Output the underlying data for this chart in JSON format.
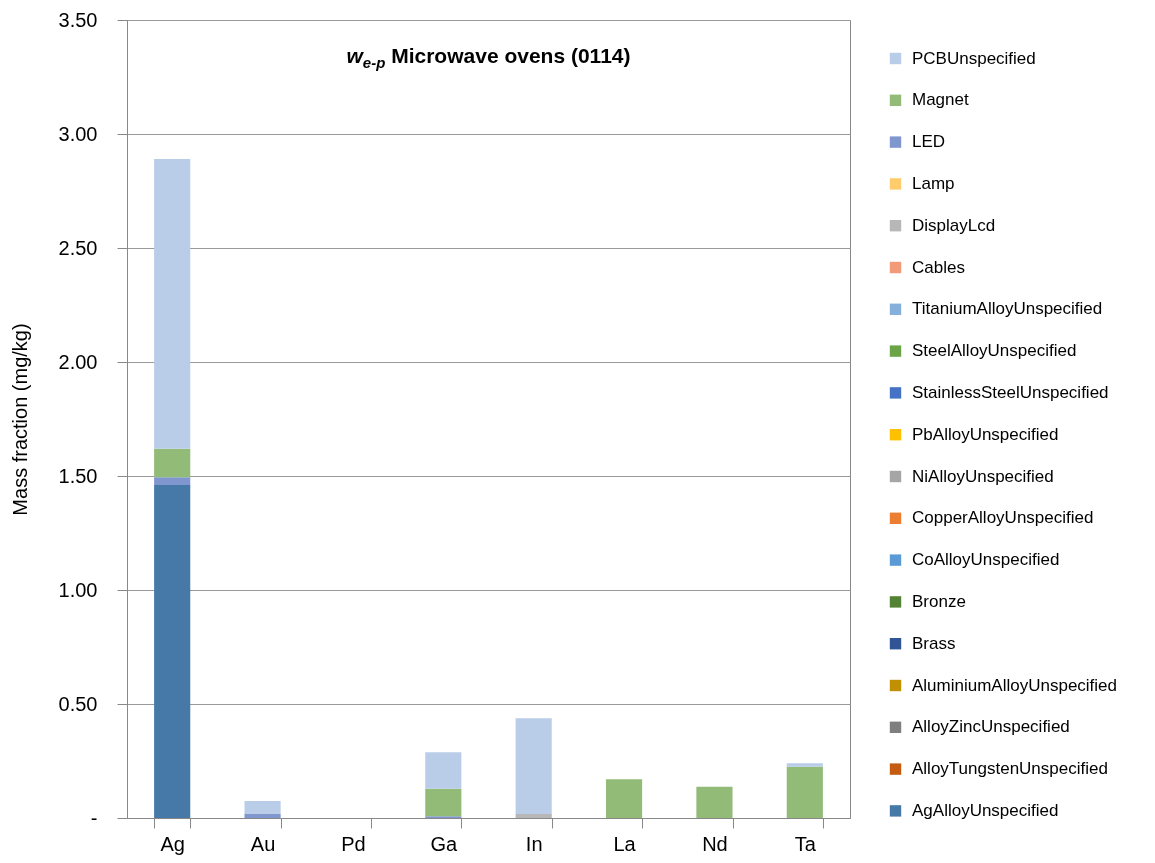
{
  "chart_data": {
    "type": "bar",
    "title": "w$_{e-p}$  Microwave ovens (0114)",
    "ylabel": "Mass fraction  (mg/kg)",
    "categories": [
      "Ag",
      "Au",
      "Pd",
      "Ga",
      "In",
      "La",
      "Nd",
      "Ta"
    ],
    "stacked": true,
    "ylim": [
      0,
      3.5
    ],
    "yticks": [
      {
        "value": 0,
        "label": "-"
      },
      {
        "value": 0.5,
        "label": "0.50"
      },
      {
        "value": 1,
        "label": "1.00"
      },
      {
        "value": 1.5,
        "label": "1.50"
      },
      {
        "value": 2,
        "label": "2.00"
      },
      {
        "value": 2.5,
        "label": "2.50"
      },
      {
        "value": 3,
        "label": "3.00"
      },
      {
        "value": 3.5,
        "label": "3.50"
      }
    ],
    "grid": "y",
    "legend": "right",
    "series": [
      {
        "name": "AgAlloyUnspecified",
        "color": "#4679a8",
        "values": [
          1.46,
          null,
          null,
          null,
          null,
          null,
          null,
          null
        ]
      },
      {
        "name": "AlloyTungstenUnspecified",
        "color": "#c55a11",
        "values": [
          null,
          null,
          null,
          null,
          null,
          null,
          null,
          null
        ]
      },
      {
        "name": "AlloyZincUnspecified",
        "color": "#7f7f7f",
        "values": [
          null,
          null,
          null,
          null,
          null,
          null,
          null,
          null
        ]
      },
      {
        "name": "AluminiumAlloyUnspecified",
        "color": "#c09000",
        "values": [
          null,
          null,
          null,
          null,
          null,
          null,
          null,
          null
        ]
      },
      {
        "name": "Brass",
        "color": "#2f5597",
        "values": [
          null,
          null,
          null,
          null,
          null,
          null,
          null,
          null
        ]
      },
      {
        "name": "Bronze",
        "color": "#548235",
        "values": [
          null,
          null,
          null,
          null,
          null,
          null,
          null,
          null
        ]
      },
      {
        "name": "CoAlloyUnspecified",
        "color": "#5b9bd5",
        "values": [
          null,
          null,
          null,
          null,
          null,
          null,
          null,
          null
        ]
      },
      {
        "name": "CopperAlloyUnspecified",
        "color": "#ed7d31",
        "values": [
          null,
          null,
          null,
          null,
          null,
          null,
          null,
          null
        ]
      },
      {
        "name": "NiAlloyUnspecified",
        "color": "#a5a5a5",
        "values": [
          null,
          null,
          null,
          null,
          null,
          null,
          null,
          null
        ]
      },
      {
        "name": "PbAlloyUnspecified",
        "color": "#ffc000",
        "values": [
          null,
          null,
          null,
          null,
          null,
          null,
          null,
          null
        ]
      },
      {
        "name": "StainlessSteelUnspecified",
        "color": "#4472c4",
        "values": [
          null,
          null,
          null,
          null,
          null,
          null,
          null,
          null
        ]
      },
      {
        "name": "SteelAlloyUnspecified",
        "color": "#6aa447",
        "values": [
          null,
          null,
          null,
          null,
          null,
          null,
          null,
          null
        ]
      },
      {
        "name": "TitaniumAlloyUnspecified",
        "color": "#86b0dc",
        "values": [
          null,
          null,
          null,
          null,
          null,
          null,
          null,
          null
        ]
      },
      {
        "name": "Cables",
        "color": "#f29b76",
        "values": [
          null,
          null,
          null,
          null,
          null,
          null,
          null,
          null
        ]
      },
      {
        "name": "DisplayLcd",
        "color": "#b7b7b7",
        "values": [
          null,
          null,
          null,
          null,
          0.018,
          null,
          null,
          null
        ]
      },
      {
        "name": "Lamp",
        "color": "#fecb6d",
        "values": [
          null,
          null,
          null,
          null,
          null,
          null,
          null,
          null
        ]
      },
      {
        "name": "LED",
        "color": "#7f96cf",
        "values": [
          0.035,
          0.02,
          null,
          0.008,
          null,
          null,
          null,
          null
        ]
      },
      {
        "name": "Magnet",
        "color": "#93bb78",
        "values": [
          0.125,
          null,
          null,
          0.12,
          null,
          0.17,
          0.137,
          0.225
        ]
      },
      {
        "name": "PCBUnspecified",
        "color": "#b9cde9",
        "values": [
          1.27,
          0.055,
          null,
          0.16,
          0.42,
          null,
          null,
          0.015
        ]
      }
    ]
  }
}
